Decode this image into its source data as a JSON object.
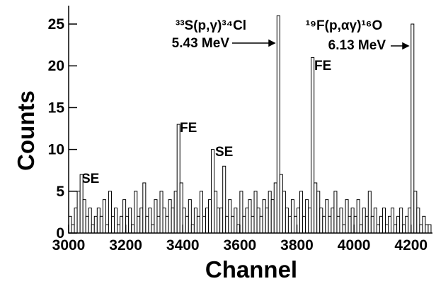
{
  "chart_data": {
    "type": "histogram",
    "xlabel": "Channel",
    "ylabel": "Counts",
    "bins": [
      3000,
      3010,
      3020,
      3030,
      3040,
      3050,
      3060,
      3070,
      3080,
      3090,
      3100,
      3110,
      3120,
      3130,
      3140,
      3150,
      3160,
      3170,
      3180,
      3190,
      3200,
      3210,
      3220,
      3230,
      3240,
      3250,
      3260,
      3270,
      3280,
      3290,
      3300,
      3310,
      3320,
      3330,
      3340,
      3350,
      3360,
      3370,
      3380,
      3390,
      3400,
      3410,
      3420,
      3430,
      3440,
      3450,
      3460,
      3470,
      3480,
      3490,
      3500,
      3510,
      3520,
      3530,
      3540,
      3550,
      3560,
      3570,
      3580,
      3590,
      3600,
      3610,
      3620,
      3630,
      3640,
      3650,
      3660,
      3670,
      3680,
      3690,
      3700,
      3710,
      3720,
      3730,
      3740,
      3750,
      3760,
      3770,
      3780,
      3790,
      3800,
      3810,
      3820,
      3830,
      3840,
      3850,
      3860,
      3870,
      3880,
      3890,
      3900,
      3910,
      3920,
      3930,
      3940,
      3950,
      3960,
      3970,
      3980,
      3990,
      4000,
      4010,
      4020,
      4030,
      4040,
      4050,
      4060,
      4070,
      4080,
      4090,
      4100,
      4110,
      4120,
      4130,
      4140,
      4150,
      4160,
      4170,
      4180,
      4190,
      4200,
      4210,
      4220,
      4230,
      4240,
      4250,
      4260,
      4270
    ],
    "values": [
      2,
      1,
      3,
      5,
      7,
      4,
      2,
      3,
      1,
      2,
      3,
      2,
      4,
      1,
      5,
      2,
      3,
      1,
      2,
      4,
      2,
      3,
      1,
      5,
      2,
      3,
      6,
      2,
      3,
      1,
      4,
      2,
      5,
      3,
      2,
      4,
      3,
      5,
      13,
      6,
      3,
      2,
      4,
      1,
      3,
      2,
      5,
      2,
      3,
      4,
      10,
      5,
      3,
      3,
      8,
      2,
      4,
      2,
      3,
      1,
      5,
      2,
      3,
      4,
      2,
      5,
      3,
      2,
      4,
      3,
      5,
      4,
      6,
      26,
      7,
      5,
      3,
      2,
      4,
      2,
      3,
      5,
      2,
      4,
      3,
      21,
      6,
      5,
      3,
      2,
      4,
      2,
      3,
      5,
      2,
      3,
      1,
      4,
      2,
      3,
      2,
      4,
      1,
      3,
      2,
      5,
      2,
      3,
      1,
      2,
      3,
      1,
      2,
      3,
      1,
      2,
      3,
      1,
      2,
      3,
      25,
      5,
      3,
      1,
      2,
      1,
      1
    ],
    "color": "#000000",
    "xlim": [
      3000,
      4275
    ],
    "ylim": [
      0,
      27.2
    ],
    "xticks": [
      3000,
      3200,
      3400,
      3600,
      3800,
      4000,
      4200
    ],
    "yticks": [
      0,
      5,
      10,
      15,
      20,
      25
    ],
    "annotations": [
      "³³S(p,γ)³⁴Cl",
      "5.43 MeV",
      "¹⁹F(p,αγ)¹⁶O",
      "6.13 MeV",
      "FE",
      "FE",
      "SE",
      "SE"
    ]
  }
}
